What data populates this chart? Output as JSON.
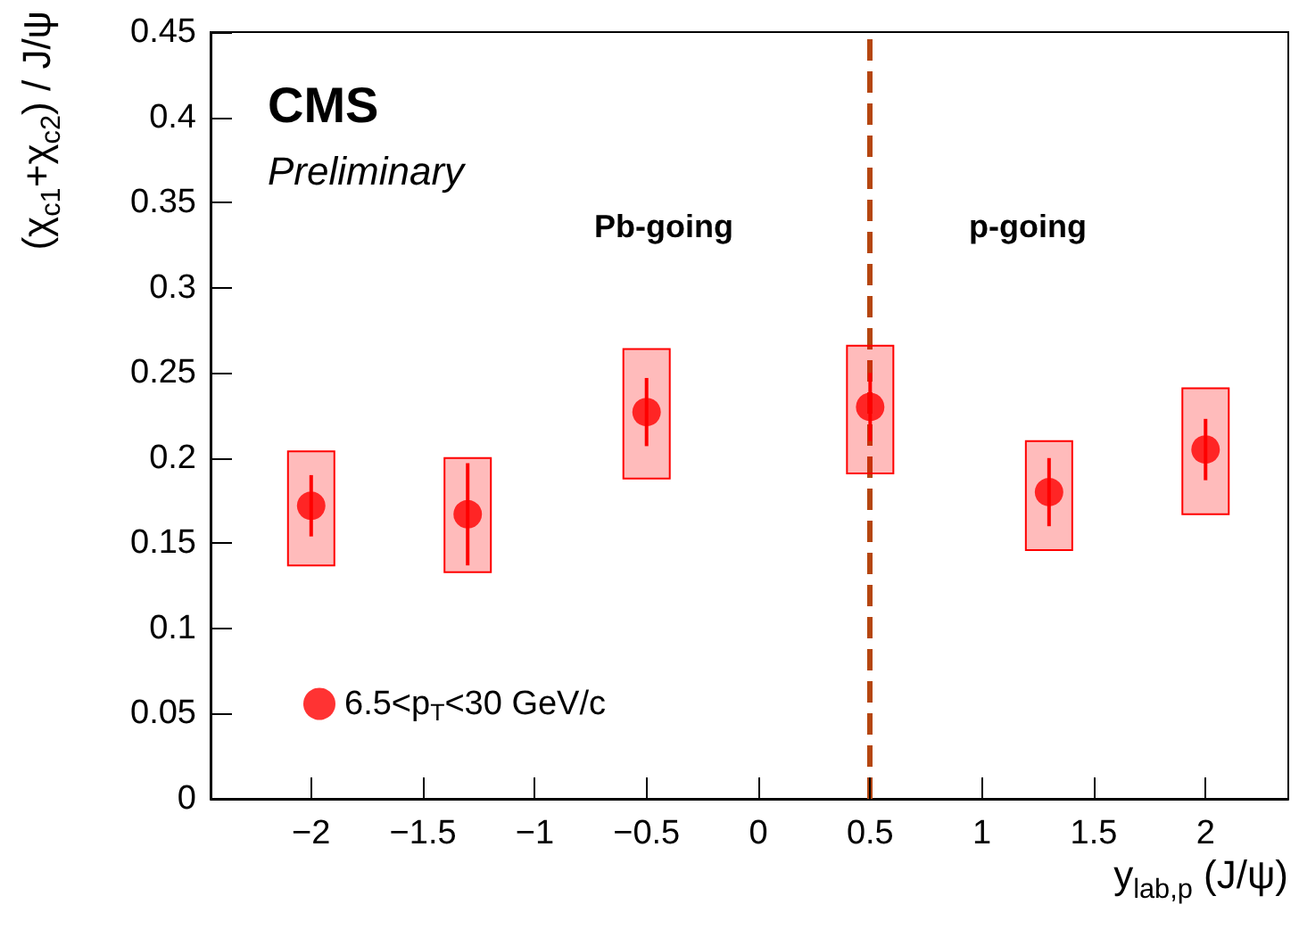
{
  "chart_data": {
    "type": "scatter",
    "xlabel": "y$_{lab,p}$ (J/ψ)",
    "ylabel": "(χ$_{c1}$+χ$_{c2}$) / J/ψ",
    "annotations": [
      "CMS",
      "Preliminary",
      "Pb-going",
      "p-going"
    ],
    "xlim": [
      -2.45,
      2.37
    ],
    "xticks": [
      {
        "value": -2,
        "label": "−2"
      },
      {
        "value": -1.5,
        "label": "−1.5"
      },
      {
        "value": -1,
        "label": "−1"
      },
      {
        "value": -0.5,
        "label": "−0.5"
      },
      0,
      0.5,
      1,
      1.5,
      2
    ],
    "ylim": [
      0,
      0.45
    ],
    "yticks": [
      0,
      0.05,
      0.1,
      0.15,
      0.2,
      0.25,
      0.3,
      0.35,
      0.4,
      0.45
    ],
    "series": [
      {
        "type": "bar",
        "color": "#ff0000",
        "x": [
          -2,
          -1.3,
          -0.5,
          0.5,
          1.3,
          2
        ],
        "base": [
          0.137,
          0.133,
          0.188,
          0.191,
          0.146,
          0.167
        ],
        "values": [
          0.067,
          0.067,
          0.076,
          0.075,
          0.064,
          0.074
        ]
      },
      {
        "name": "6.5<p$_{T}$<30 GeV/c",
        "color": "#ff0000",
        "x": [
          -2,
          -1.3,
          -0.5,
          0.5,
          1.3,
          2
        ],
        "values": [
          0.172,
          0.167,
          0.227,
          0.23,
          0.18,
          0.205
        ],
        "errors": [
          0.018,
          0.03,
          0.02,
          0.02,
          0.02,
          0.018
        ]
      }
    ],
    "ref_lines": [
      {
        "axis": "x",
        "value": 0.5,
        "label": null,
        "color": "#b5460f",
        "line_style": "dashed"
      }
    ],
    "marker": "circle",
    "legend": "bottom left",
    "grid": false
  }
}
